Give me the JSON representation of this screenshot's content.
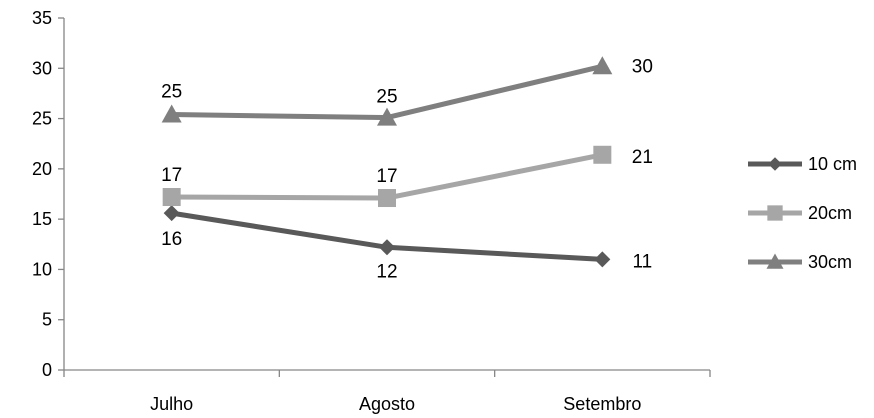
{
  "chart_data": {
    "type": "line",
    "title": "",
    "xlabel": "",
    "ylabel": "",
    "categories": [
      "Julho",
      "Agosto",
      "Setembro"
    ],
    "ylim": [
      0,
      35
    ],
    "yticks": [
      0,
      5,
      10,
      15,
      20,
      25,
      30,
      35
    ],
    "grid": false,
    "legend_position": "right",
    "series": [
      {
        "name": "10 cm",
        "values": [
          15.6,
          12.2,
          11.0
        ],
        "labels": [
          "16",
          "12",
          "11"
        ],
        "color": "#595959",
        "marker": "diamond"
      },
      {
        "name": "20cm",
        "values": [
          17.2,
          17.1,
          21.4
        ],
        "labels": [
          "17",
          "17",
          "21"
        ],
        "color": "#a6a6a6",
        "marker": "square"
      },
      {
        "name": "30cm",
        "values": [
          25.4,
          25.1,
          30.2
        ],
        "labels": [
          "25",
          "25",
          "30"
        ],
        "color": "#7f7f7f",
        "marker": "triangle"
      }
    ]
  }
}
